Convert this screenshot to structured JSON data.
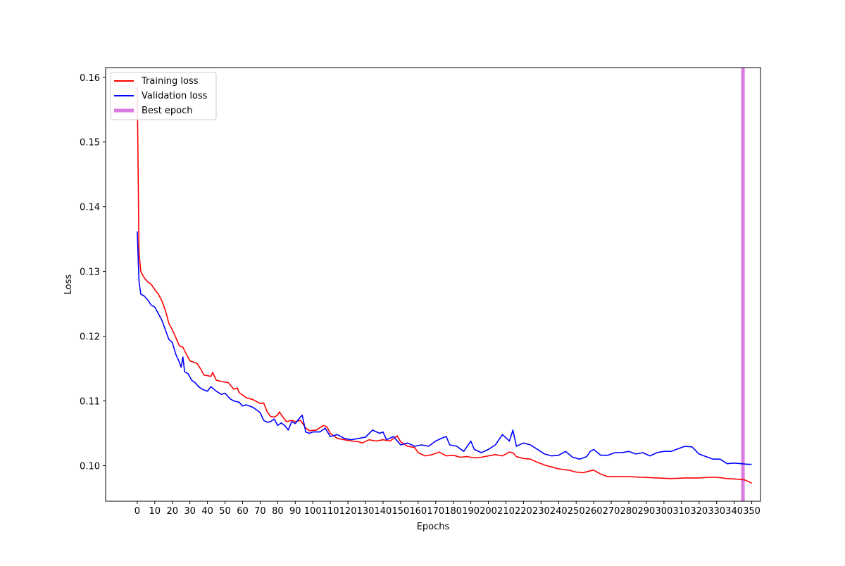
{
  "chart_data": {
    "type": "line",
    "xlabel": "Epochs",
    "ylabel": "Loss",
    "xlim": [
      -18,
      355
    ],
    "ylim": [
      0.0945,
      0.1615
    ],
    "x_ticks": [
      0,
      10,
      20,
      30,
      40,
      50,
      60,
      70,
      80,
      90,
      100,
      110,
      120,
      130,
      140,
      150,
      160,
      170,
      180,
      190,
      200,
      210,
      220,
      230,
      240,
      250,
      260,
      270,
      280,
      290,
      300,
      310,
      320,
      330,
      340,
      350
    ],
    "y_ticks": [
      0.1,
      0.11,
      0.12,
      0.13,
      0.14,
      0.15,
      0.16
    ],
    "y_tick_labels": [
      "0.10",
      "0.11",
      "0.12",
      "0.13",
      "0.14",
      "0.15",
      "0.16"
    ],
    "legend_position": "top-left",
    "series": [
      {
        "name": "Training loss",
        "color": "#ff0000",
        "points": [
          [
            0,
            0.1585
          ],
          [
            1,
            0.133
          ],
          [
            2,
            0.13
          ],
          [
            4,
            0.129
          ],
          [
            6,
            0.1284
          ],
          [
            8,
            0.128
          ],
          [
            10,
            0.1272
          ],
          [
            12,
            0.1265
          ],
          [
            14,
            0.1255
          ],
          [
            16,
            0.124
          ],
          [
            18,
            0.122
          ],
          [
            20,
            0.121
          ],
          [
            22,
            0.1198
          ],
          [
            24,
            0.1185
          ],
          [
            26,
            0.1183
          ],
          [
            28,
            0.1172
          ],
          [
            30,
            0.1162
          ],
          [
            34,
            0.1158
          ],
          [
            36,
            0.115
          ],
          [
            38,
            0.114
          ],
          [
            42,
            0.1138
          ],
          [
            43,
            0.1144
          ],
          [
            45,
            0.1132
          ],
          [
            48,
            0.113
          ],
          [
            52,
            0.1128
          ],
          [
            55,
            0.1118
          ],
          [
            57,
            0.112
          ],
          [
            58,
            0.1113
          ],
          [
            62,
            0.1105
          ],
          [
            66,
            0.1102
          ],
          [
            70,
            0.1096
          ],
          [
            72,
            0.1097
          ],
          [
            74,
            0.1083
          ],
          [
            76,
            0.1076
          ],
          [
            78,
            0.1075
          ],
          [
            80,
            0.1078
          ],
          [
            81,
            0.1083
          ],
          [
            83,
            0.1075
          ],
          [
            85,
            0.1068
          ],
          [
            88,
            0.107
          ],
          [
            90,
            0.1068
          ],
          [
            93,
            0.107
          ],
          [
            96,
            0.1058
          ],
          [
            98,
            0.1054
          ],
          [
            102,
            0.1055
          ],
          [
            106,
            0.1062
          ],
          [
            108,
            0.106
          ],
          [
            110,
            0.105
          ],
          [
            114,
            0.1042
          ],
          [
            118,
            0.104
          ],
          [
            122,
            0.1038
          ],
          [
            126,
            0.1037
          ],
          [
            128,
            0.1035
          ],
          [
            132,
            0.104
          ],
          [
            136,
            0.1038
          ],
          [
            140,
            0.104
          ],
          [
            144,
            0.1038
          ],
          [
            148,
            0.1046
          ],
          [
            150,
            0.1037
          ],
          [
            154,
            0.103
          ],
          [
            158,
            0.1028
          ],
          [
            160,
            0.102
          ],
          [
            164,
            0.1015
          ],
          [
            168,
            0.1017
          ],
          [
            172,
            0.1021
          ],
          [
            176,
            0.1015
          ],
          [
            180,
            0.1016
          ],
          [
            184,
            0.1013
          ],
          [
            188,
            0.1014
          ],
          [
            192,
            0.1012
          ],
          [
            196,
            0.1013
          ],
          [
            200,
            0.1015
          ],
          [
            204,
            0.1017
          ],
          [
            208,
            0.1015
          ],
          [
            212,
            0.1021
          ],
          [
            214,
            0.102
          ],
          [
            216,
            0.1014
          ],
          [
            220,
            0.1011
          ],
          [
            224,
            0.101
          ],
          [
            228,
            0.1005
          ],
          [
            232,
            0.1001
          ],
          [
            236,
            0.0998
          ],
          [
            240,
            0.0995
          ],
          [
            246,
            0.0993
          ],
          [
            250,
            0.099
          ],
          [
            254,
            0.0989
          ],
          [
            258,
            0.0992
          ],
          [
            260,
            0.0993
          ],
          [
            264,
            0.0987
          ],
          [
            268,
            0.0983
          ],
          [
            274,
            0.0983
          ],
          [
            280,
            0.0983
          ],
          [
            288,
            0.0982
          ],
          [
            296,
            0.0981
          ],
          [
            304,
            0.098
          ],
          [
            312,
            0.0981
          ],
          [
            320,
            0.0981
          ],
          [
            326,
            0.0982
          ],
          [
            330,
            0.0982
          ],
          [
            336,
            0.098
          ],
          [
            342,
            0.0979
          ],
          [
            346,
            0.0978
          ],
          [
            350,
            0.0973
          ]
        ]
      },
      {
        "name": "Validation loss",
        "color": "#0000ff",
        "points": [
          [
            0,
            0.1362
          ],
          [
            1,
            0.1285
          ],
          [
            2,
            0.1265
          ],
          [
            4,
            0.1262
          ],
          [
            6,
            0.1256
          ],
          [
            8,
            0.1248
          ],
          [
            10,
            0.1245
          ],
          [
            12,
            0.1235
          ],
          [
            14,
            0.1225
          ],
          [
            16,
            0.121
          ],
          [
            18,
            0.1195
          ],
          [
            20,
            0.119
          ],
          [
            22,
            0.1172
          ],
          [
            24,
            0.116
          ],
          [
            25,
            0.1152
          ],
          [
            26,
            0.1168
          ],
          [
            27,
            0.1145
          ],
          [
            29,
            0.1142
          ],
          [
            31,
            0.1132
          ],
          [
            33,
            0.1128
          ],
          [
            35,
            0.1122
          ],
          [
            37,
            0.1118
          ],
          [
            40,
            0.1115
          ],
          [
            42,
            0.1122
          ],
          [
            45,
            0.1115
          ],
          [
            48,
            0.111
          ],
          [
            50,
            0.1112
          ],
          [
            53,
            0.1103
          ],
          [
            55,
            0.11
          ],
          [
            58,
            0.1098
          ],
          [
            60,
            0.1092
          ],
          [
            62,
            0.1094
          ],
          [
            66,
            0.109
          ],
          [
            70,
            0.1082
          ],
          [
            72,
            0.107
          ],
          [
            74,
            0.1067
          ],
          [
            76,
            0.1068
          ],
          [
            78,
            0.1072
          ],
          [
            80,
            0.1062
          ],
          [
            82,
            0.1066
          ],
          [
            84,
            0.1062
          ],
          [
            86,
            0.1055
          ],
          [
            88,
            0.1068
          ],
          [
            90,
            0.1065
          ],
          [
            92,
            0.1072
          ],
          [
            94,
            0.1078
          ],
          [
            96,
            0.1052
          ],
          [
            98,
            0.105
          ],
          [
            100,
            0.1052
          ],
          [
            104,
            0.1052
          ],
          [
            107,
            0.1058
          ],
          [
            110,
            0.1045
          ],
          [
            114,
            0.1048
          ],
          [
            118,
            0.1042
          ],
          [
            122,
            0.104
          ],
          [
            126,
            0.1042
          ],
          [
            130,
            0.1044
          ],
          [
            134,
            0.1055
          ],
          [
            138,
            0.105
          ],
          [
            140,
            0.1052
          ],
          [
            142,
            0.104
          ],
          [
            146,
            0.1045
          ],
          [
            150,
            0.1032
          ],
          [
            154,
            0.1035
          ],
          [
            158,
            0.103
          ],
          [
            162,
            0.1032
          ],
          [
            166,
            0.103
          ],
          [
            170,
            0.1038
          ],
          [
            174,
            0.1043
          ],
          [
            176,
            0.1045
          ],
          [
            178,
            0.1032
          ],
          [
            182,
            0.103
          ],
          [
            186,
            0.1022
          ],
          [
            190,
            0.1038
          ],
          [
            192,
            0.1025
          ],
          [
            196,
            0.102
          ],
          [
            200,
            0.1025
          ],
          [
            204,
            0.1032
          ],
          [
            208,
            0.1048
          ],
          [
            212,
            0.1038
          ],
          [
            214,
            0.1055
          ],
          [
            216,
            0.103
          ],
          [
            220,
            0.1035
          ],
          [
            224,
            0.1032
          ],
          [
            228,
            0.1025
          ],
          [
            232,
            0.1018
          ],
          [
            236,
            0.1015
          ],
          [
            240,
            0.1016
          ],
          [
            244,
            0.1022
          ],
          [
            248,
            0.1013
          ],
          [
            252,
            0.101
          ],
          [
            256,
            0.1014
          ],
          [
            258,
            0.1022
          ],
          [
            260,
            0.1025
          ],
          [
            264,
            0.1016
          ],
          [
            268,
            0.1016
          ],
          [
            272,
            0.102
          ],
          [
            276,
            0.102
          ],
          [
            280,
            0.1022
          ],
          [
            284,
            0.1018
          ],
          [
            288,
            0.102
          ],
          [
            292,
            0.1015
          ],
          [
            296,
            0.102
          ],
          [
            300,
            0.1022
          ],
          [
            304,
            0.1022
          ],
          [
            308,
            0.1026
          ],
          [
            312,
            0.103
          ],
          [
            316,
            0.1029
          ],
          [
            320,
            0.1018
          ],
          [
            324,
            0.1014
          ],
          [
            328,
            0.101
          ],
          [
            332,
            0.101
          ],
          [
            336,
            0.1003
          ],
          [
            340,
            0.1004
          ],
          [
            344,
            0.1003
          ],
          [
            348,
            0.1002
          ],
          [
            350,
            0.1002
          ]
        ]
      }
    ],
    "best_epoch": {
      "name": "Best epoch",
      "x": 345,
      "color": "#da7be0"
    }
  }
}
